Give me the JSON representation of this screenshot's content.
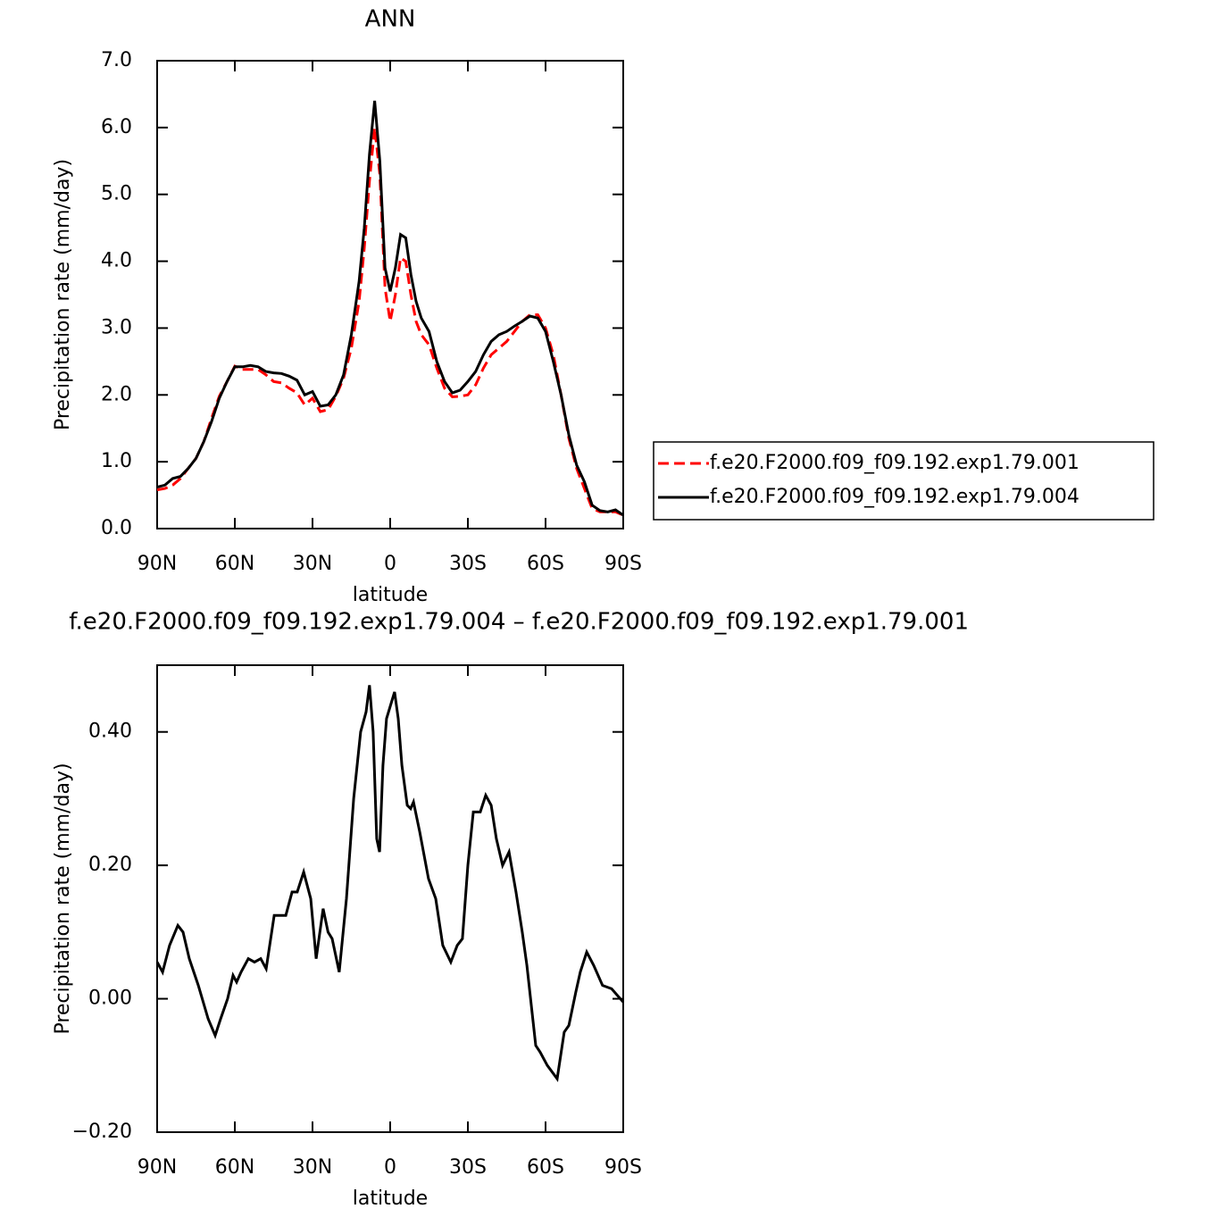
{
  "chart_data": [
    {
      "type": "line",
      "title": "ANN",
      "xlabel": "latitude",
      "ylabel": "Precipitation rate (mm/day)",
      "legend": "right",
      "xlim": [
        90,
        -90
      ],
      "xticks": [
        {
          "value": 90,
          "label": "90N"
        },
        {
          "value": 60,
          "label": "60N"
        },
        {
          "value": 30,
          "label": "30N"
        },
        0,
        {
          "value": -30,
          "label": "30S"
        },
        {
          "value": -60,
          "label": "60S"
        },
        {
          "value": -90,
          "label": "90S"
        }
      ],
      "ylim": [
        0,
        7
      ],
      "yticks": [
        {
          "value": 0,
          "label": "0.0"
        },
        {
          "value": 1,
          "label": "1.0"
        },
        {
          "value": 2,
          "label": "2.0"
        },
        {
          "value": 3,
          "label": "3.0"
        },
        {
          "value": 4,
          "label": "4.0"
        },
        {
          "value": 5,
          "label": "5.0"
        },
        {
          "value": 6,
          "label": "6.0"
        },
        {
          "value": 7,
          "label": "7.0"
        }
      ],
      "x": [
        90,
        87,
        84,
        81,
        78,
        75,
        72,
        69,
        66,
        63,
        60,
        57,
        54,
        51,
        48,
        45,
        42,
        39,
        36,
        33,
        30,
        27,
        24,
        21,
        18,
        15,
        12,
        10,
        8,
        6,
        4,
        2,
        0,
        -2,
        -4,
        -6,
        -8,
        -10,
        -12,
        -15,
        -18,
        -21,
        -24,
        -27,
        -30,
        -33,
        -36,
        -39,
        -42,
        -45,
        -48,
        -51,
        -54,
        -57,
        -60,
        -63,
        -66,
        -69,
        -72,
        -75,
        -78,
        -81,
        -84,
        -87,
        -90
      ],
      "series": [
        {
          "name": "f.e20.F2000.f09_f09.192.exp1.79.001",
          "color": "#ff0000",
          "linestyle": "dashed",
          "values": [
            0.58,
            0.6,
            0.65,
            0.75,
            0.9,
            1.05,
            1.3,
            1.65,
            1.98,
            2.2,
            2.43,
            2.38,
            2.38,
            2.38,
            2.3,
            2.2,
            2.18,
            2.1,
            2.03,
            1.85,
            1.95,
            1.75,
            1.78,
            1.98,
            2.25,
            2.7,
            3.4,
            4.2,
            5.2,
            6.0,
            5.3,
            3.6,
            3.1,
            3.5,
            4.05,
            4.0,
            3.5,
            3.1,
            2.9,
            2.75,
            2.4,
            2.1,
            1.97,
            1.98,
            2.0,
            2.15,
            2.4,
            2.6,
            2.7,
            2.8,
            2.95,
            3.1,
            3.2,
            3.2,
            3.0,
            2.6,
            2.0,
            1.35,
            0.9,
            0.6,
            0.3,
            0.25,
            0.25,
            0.25,
            0.2
          ]
        },
        {
          "name": "f.e20.F2000.f09_f09.192.exp1.79.004",
          "color": "#000000",
          "linestyle": "solid",
          "values": [
            0.62,
            0.65,
            0.75,
            0.78,
            0.9,
            1.05,
            1.3,
            1.6,
            1.95,
            2.2,
            2.42,
            2.42,
            2.44,
            2.42,
            2.35,
            2.33,
            2.32,
            2.28,
            2.22,
            2.0,
            2.05,
            1.83,
            1.85,
            2.0,
            2.3,
            2.9,
            3.7,
            4.5,
            5.6,
            6.4,
            5.5,
            3.9,
            3.55,
            3.9,
            4.4,
            4.35,
            3.8,
            3.4,
            3.15,
            2.95,
            2.5,
            2.2,
            2.03,
            2.07,
            2.2,
            2.35,
            2.6,
            2.8,
            2.9,
            2.95,
            3.03,
            3.1,
            3.18,
            3.15,
            2.95,
            2.5,
            2.0,
            1.4,
            0.95,
            0.7,
            0.35,
            0.27,
            0.25,
            0.28,
            0.2
          ]
        }
      ]
    },
    {
      "type": "line",
      "title": "f.e20.F2000.f09_f09.192.exp1.79.004 – f.e20.F2000.f09_f09.192.exp1.79.001",
      "xlabel": "latitude",
      "ylabel": "Precipitation rate (mm/day)",
      "xlim": [
        90,
        -90
      ],
      "xticks": [
        {
          "value": 90,
          "label": "90N"
        },
        {
          "value": 60,
          "label": "60N"
        },
        {
          "value": 30,
          "label": "30N"
        },
        0,
        {
          "value": -30,
          "label": "30S"
        },
        {
          "value": -60,
          "label": "60S"
        },
        {
          "value": -90,
          "label": "90S"
        }
      ],
      "ylim": [
        -0.2,
        0.5
      ],
      "yticks": [
        {
          "value": -0.2,
          "label": "−0.20"
        },
        {
          "value": 0,
          "label": "0.00"
        },
        {
          "value": 0.2,
          "label": "0.20"
        },
        {
          "value": 0.4,
          "label": "0.40"
        }
      ],
      "x": [
        90,
        87.9,
        85.2,
        82,
        80,
        77.6,
        74.1,
        70.3,
        67.6,
        65.5,
        62.8,
        60.7,
        59.3,
        57.6,
        54.8,
        52.4,
        50,
        47.9,
        44.8,
        40.3,
        37.9,
        35.9,
        33.4,
        30.7,
        28.6,
        25.9,
        24,
        22.4,
        19.7,
        16.9,
        14.1,
        11.4,
        9.3,
        8,
        6.6,
        5.2,
        4.1,
        2.8,
        1.4,
        -1.7,
        -3.1,
        -4.5,
        -6.6,
        -7.9,
        -9,
        -11.4,
        -14.8,
        -17.6,
        -20.3,
        -23.4,
        -25.9,
        -27.9,
        -30,
        -32.1,
        -34.8,
        -36.9,
        -39,
        -41,
        -43.4,
        -45.9,
        -48.6,
        -51,
        -52.8,
        -56.2,
        -57.9,
        -60.7,
        -64.5,
        -67.2,
        -69,
        -71.7,
        -73.4,
        -75.9,
        -78.6,
        -82,
        -85.5,
        -90
      ],
      "series": [
        {
          "color": "#000000",
          "linestyle": "solid",
          "values": [
            0.055,
            0.04,
            0.08,
            0.11,
            0.1,
            0.06,
            0.02,
            -0.03,
            -0.055,
            -0.03,
            0.0,
            0.035,
            0.025,
            0.04,
            0.06,
            0.055,
            0.06,
            0.045,
            0.125,
            0.125,
            0.16,
            0.16,
            0.19,
            0.15,
            0.06,
            0.135,
            0.1,
            0.09,
            0.04,
            0.15,
            0.3,
            0.4,
            0.43,
            0.47,
            0.4,
            0.24,
            0.22,
            0.35,
            0.42,
            0.46,
            0.42,
            0.35,
            0.29,
            0.285,
            0.295,
            0.25,
            0.18,
            0.15,
            0.08,
            0.055,
            0.08,
            0.09,
            0.2,
            0.28,
            0.28,
            0.305,
            0.29,
            0.24,
            0.2,
            0.22,
            0.16,
            0.1,
            0.05,
            -0.07,
            -0.08,
            -0.1,
            -0.12,
            -0.05,
            -0.04,
            0.01,
            0.04,
            0.07,
            0.05,
            0.02,
            0.015,
            -0.005
          ]
        }
      ]
    }
  ]
}
